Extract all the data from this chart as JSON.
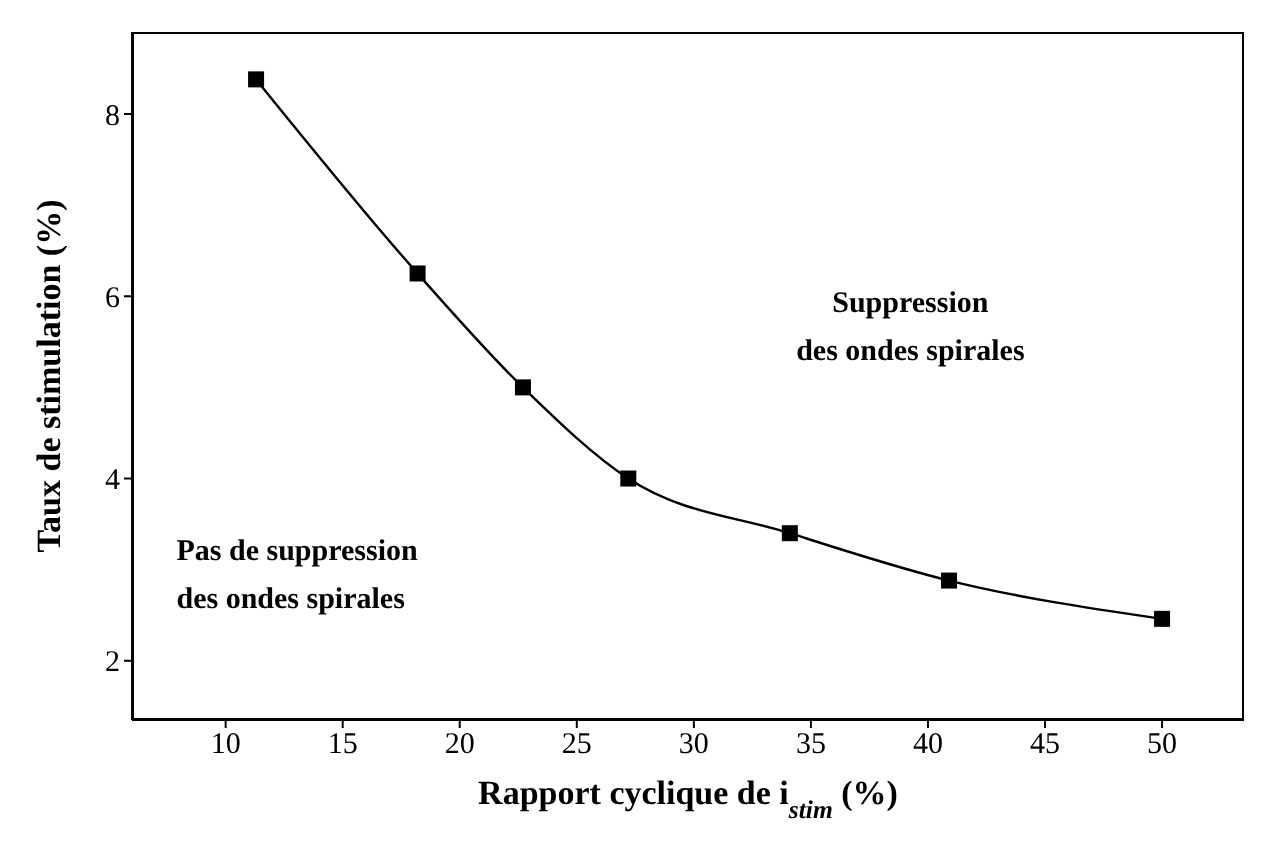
{
  "chart_data": {
    "type": "line",
    "xlabel": "Rapport cyclique de i$_{stim}$ (%)",
    "ylabel": "Taux de stimulation (%)",
    "x": [
      11.3,
      18.2,
      22.7,
      27.2,
      34.1,
      40.9,
      50
    ],
    "series": [
      {
        "color": "#000000",
        "values": [
          8.38,
          6.25,
          5.0,
          4.0,
          3.4,
          2.88,
          2.46
        ]
      }
    ],
    "xlim": [
      6,
      53.5
    ],
    "xticks": [
      10,
      15,
      20,
      25,
      30,
      35,
      40,
      45,
      50
    ],
    "ylim": [
      1.35,
      8.9
    ],
    "yticks": [
      2,
      4,
      6,
      8
    ],
    "marker": "square",
    "line_style": "solid",
    "grid": false,
    "legend": false,
    "annotations": [
      "Suppression\ndes ondes spirales",
      "Pas de suppression\ndes ondes spirales"
    ]
  }
}
